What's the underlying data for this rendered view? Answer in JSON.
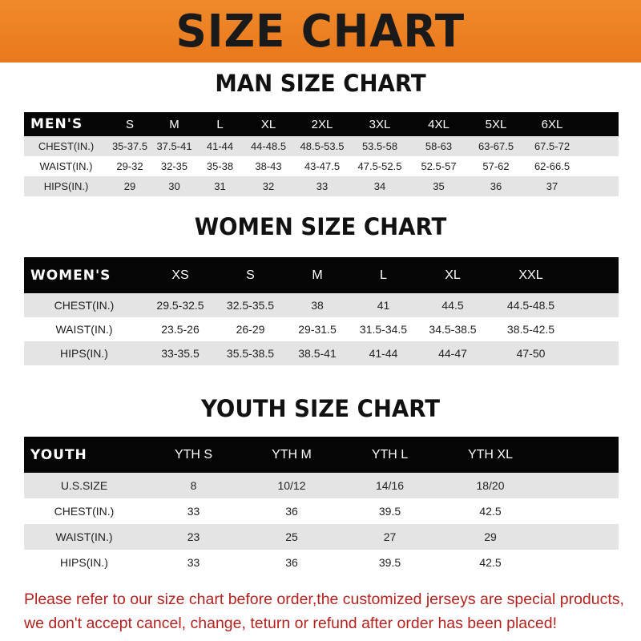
{
  "banner_title": "SIZE CHART",
  "men": {
    "title": "MAN SIZE CHART",
    "header": [
      "MEN'S",
      "S",
      "M",
      "L",
      "XL",
      "2XL",
      "3XL",
      "4XL",
      "5XL",
      "6XL"
    ],
    "rows": [
      [
        "CHEST(IN.)",
        "35-37.5",
        "37.5-41",
        "41-44",
        "44-48.5",
        "48.5-53.5",
        "53.5-58",
        "58-63",
        "63-67.5",
        "67.5-72"
      ],
      [
        "WAIST(IN.)",
        "29-32",
        "32-35",
        "35-38",
        "38-43",
        "43-47.5",
        "47.5-52.5",
        "52.5-57",
        "57-62",
        "62-66.5"
      ],
      [
        "HIPS(IN.)",
        "29",
        "30",
        "31",
        "32",
        "33",
        "34",
        "35",
        "36",
        "37"
      ]
    ]
  },
  "women": {
    "title": "WOMEN SIZE CHART",
    "header": [
      "WOMEN'S",
      "XS",
      "S",
      "M",
      "L",
      "XL",
      "XXL"
    ],
    "rows": [
      [
        "CHEST(IN.)",
        "29.5-32.5",
        "32.5-35.5",
        "38",
        "41",
        "44.5",
        "44.5-48.5"
      ],
      [
        "WAIST(IN.)",
        "23.5-26",
        "26-29",
        "29-31.5",
        "31.5-34.5",
        "34.5-38.5",
        "38.5-42.5"
      ],
      [
        "HIPS(IN.)",
        "33-35.5",
        "35.5-38.5",
        "38.5-41",
        "41-44",
        "44-47",
        "47-50"
      ]
    ]
  },
  "youth": {
    "title": "YOUTH SIZE CHART",
    "header": [
      "YOUTH",
      "YTH S",
      "YTH M",
      "YTH L",
      "YTH XL"
    ],
    "rows": [
      [
        "U.S.SIZE",
        "8",
        "10/12",
        "14/16",
        "18/20"
      ],
      [
        "CHEST(IN.)",
        "33",
        "36",
        "39.5",
        "42.5"
      ],
      [
        "WAIST(IN.)",
        "23",
        "25",
        "27",
        "29"
      ],
      [
        "HIPS(IN.)",
        "33",
        "36",
        "39.5",
        "42.5"
      ]
    ]
  },
  "note": [
    "Please refer to our size chart before order,the customized jerseys are special products,",
    "we don't accept cancel, change, teturn or refund after order has been placed!"
  ],
  "colors": {
    "banner": "#ee8424",
    "header_row": "#050505",
    "stripe": "#e4e4e4",
    "note": "#b3231f"
  }
}
